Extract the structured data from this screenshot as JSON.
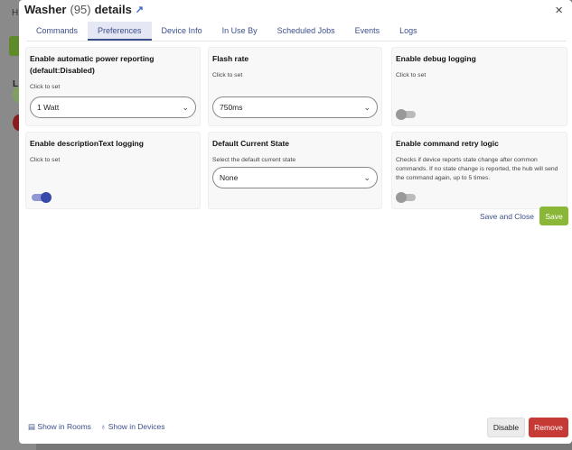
{
  "background": {
    "letter_h": "H",
    "letter_l": "L"
  },
  "dialog": {
    "title": "Washer",
    "count": "(95)",
    "title_suffix": "details",
    "close_icon": "×",
    "tabs": [
      {
        "label": "Commands"
      },
      {
        "label": "Preferences",
        "active": true
      },
      {
        "label": "Device Info"
      },
      {
        "label": "In Use By"
      },
      {
        "label": "Scheduled Jobs"
      },
      {
        "label": "Events"
      },
      {
        "label": "Logs"
      }
    ],
    "preferences": [
      {
        "title": "Enable automatic power reporting (default:Disabled)",
        "hint": "Click to set",
        "type": "select",
        "value": "1 Watt"
      },
      {
        "title": "Flash rate",
        "hint": "Click to set",
        "type": "select",
        "value": "750ms"
      },
      {
        "title": "Enable debug logging",
        "hint": "Click to set",
        "type": "toggle",
        "enabled": false
      },
      {
        "title": "Enable descriptionText logging",
        "hint": "Click to set",
        "type": "toggle",
        "enabled": true
      },
      {
        "title": "Default Current State",
        "hint": "Select the default current state",
        "type": "select",
        "value": "None"
      },
      {
        "title": "Enable command retry logic",
        "hint": "Checks if device reports state change after common commands. If no state change is reported, the hub will send the command again, up to 5 times.",
        "type": "toggle",
        "enabled": false
      }
    ],
    "save_and_close": "Save and Close",
    "save": "Save",
    "show_in_rooms": "Show in Rooms",
    "show_in_devices": "Show in Devices",
    "disable": "Disable",
    "remove": "Remove",
    "colors": {
      "accent": "#3c4f8a",
      "save": "#8ab737",
      "remove": "#c63a36",
      "toggle_on": "#3949ab"
    }
  }
}
